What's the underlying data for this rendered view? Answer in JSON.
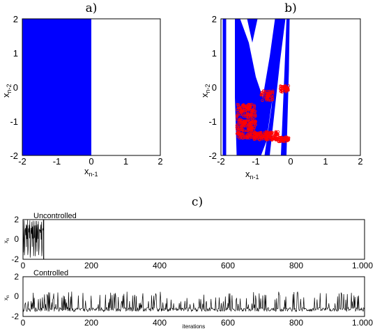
{
  "chart_data": [
    {
      "id": "a",
      "panel_label": "a)",
      "type": "area",
      "xlabel": "x",
      "xlabel_sub": "n-1",
      "ylabel": "x",
      "ylabel_sub": "n-2",
      "xlim": [
        -2,
        2
      ],
      "ylim": [
        -2,
        2
      ],
      "xticks": [
        "-2",
        "-1",
        "0",
        "1",
        "2"
      ],
      "yticks": [
        "2",
        "1",
        "0",
        "-1",
        "-2"
      ],
      "fill_color": "#0000ff",
      "region": {
        "x_from": -2,
        "x_to": 0,
        "y_from": -2,
        "y_to": 2
      }
    },
    {
      "id": "b",
      "panel_label": "b)",
      "type": "scatter",
      "xlabel": "x",
      "xlabel_sub": "n-1",
      "ylabel": "x",
      "ylabel_sub": "n-2",
      "xlim": [
        -2,
        2
      ],
      "ylim": [
        -2,
        2
      ],
      "xticks": [
        "-2",
        "-1",
        "0",
        "1",
        "2"
      ],
      "yticks": [
        "2",
        "1",
        "0",
        "-1",
        "-2"
      ],
      "fill_color": "#0000ff",
      "point_color": "#ff0000",
      "blue_regions": [
        [
          [
            -1.95,
            2
          ],
          [
            -1.85,
            2
          ],
          [
            -1.85,
            -2
          ],
          [
            -1.95,
            -2
          ]
        ],
        [
          [
            -1.6,
            2
          ],
          [
            -1.45,
            2
          ],
          [
            -1.2,
            1.3
          ],
          [
            -1.0,
            0.3
          ],
          [
            -0.8,
            -0.3
          ],
          [
            -0.6,
            0.9
          ],
          [
            -0.45,
            2
          ],
          [
            -0.2,
            2
          ],
          [
            -0.45,
            0.2
          ],
          [
            -0.7,
            -1.6
          ],
          [
            -0.85,
            -2
          ],
          [
            -1.55,
            -2
          ],
          [
            -1.6,
            -0.3
          ]
        ],
        [
          [
            -1.25,
            2
          ],
          [
            -0.95,
            2
          ],
          [
            -1.1,
            1.3
          ]
        ],
        [
          [
            -0.3,
            2
          ],
          [
            -0.15,
            2
          ],
          [
            -0.3,
            0.8
          ],
          [
            -0.45,
            -0.6
          ],
          [
            -0.6,
            -2
          ],
          [
            -0.75,
            -2
          ],
          [
            -0.55,
            -0.6
          ]
        ],
        [
          [
            -0.12,
            2
          ],
          [
            -0.03,
            2
          ],
          [
            -0.05,
            0.5
          ],
          [
            -0.12,
            -2
          ],
          [
            -0.28,
            -2
          ],
          [
            -0.18,
            0.4
          ]
        ]
      ],
      "clusters": [
        {
          "x": [
            -1.55,
            -1.0
          ],
          "y": [
            -1.5,
            -0.5
          ],
          "n": 260
        },
        {
          "x": [
            -1.05,
            -0.35
          ],
          "y": [
            -1.55,
            -1.3
          ],
          "n": 140
        },
        {
          "x": [
            -0.35,
            -0.05
          ],
          "y": [
            -1.6,
            -1.45
          ],
          "n": 50
        },
        {
          "x": [
            -0.85,
            -0.5
          ],
          "y": [
            -0.4,
            -0.1
          ],
          "n": 50
        },
        {
          "x": [
            -0.3,
            -0.05
          ],
          "y": [
            -0.15,
            0.05
          ],
          "n": 40
        }
      ]
    },
    {
      "id": "c",
      "panel_label": "c)",
      "type": "line",
      "subplots": [
        {
          "title": "Uncontrolled",
          "ylabel": "x",
          "ylabel_sub": "n",
          "xlim": [
            0,
            1000
          ],
          "ylim": [
            -2,
            2
          ],
          "xticks": [
            "0",
            "200",
            "400",
            "600",
            "800",
            "1.000"
          ],
          "yticks": [
            "2",
            "0",
            "-2"
          ],
          "xlabel": "",
          "series": {
            "x_start": 0,
            "x_end": 60,
            "chaotic_range": [
              -2,
              2
            ],
            "diverge_at": 60
          }
        },
        {
          "title": "Controlled",
          "ylabel": "x",
          "ylabel_sub": "n",
          "xlim": [
            0,
            1000
          ],
          "ylim": [
            -2,
            2
          ],
          "xticks": [
            "0",
            "200",
            "400",
            "600",
            "800",
            "1.000"
          ],
          "yticks": [
            "2",
            "0",
            "-2"
          ],
          "xlabel": "iterations",
          "series": {
            "x_start": 0,
            "x_end": 1000,
            "baseline": -1.3,
            "spike_max": 0.5
          }
        }
      ]
    }
  ]
}
